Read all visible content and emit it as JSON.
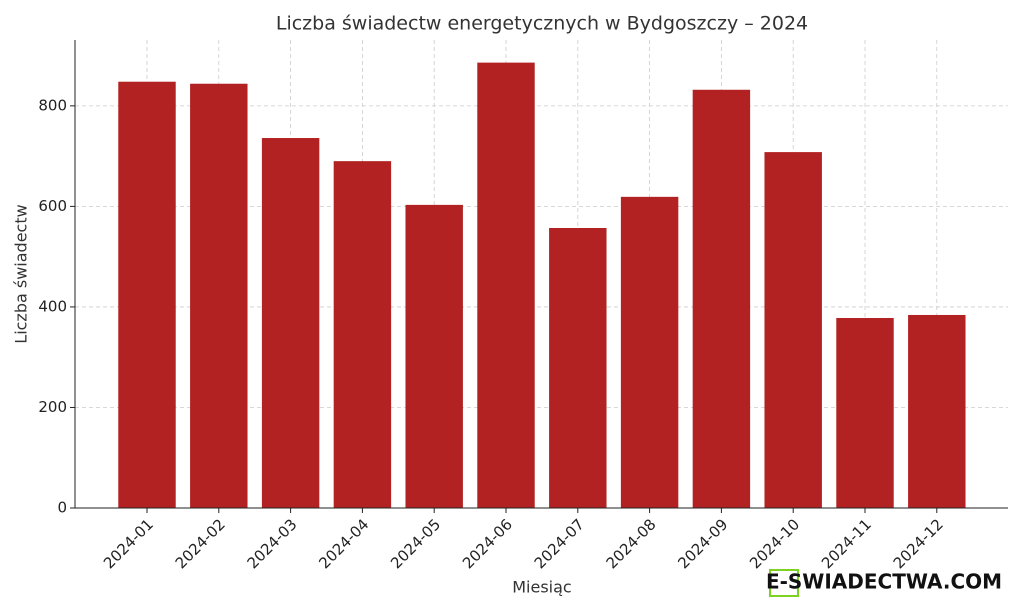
{
  "chart_data": {
    "type": "bar",
    "title": "Liczba świadectw energetycznych w Bydgoszczy – 2024",
    "x_label": "Miesiąc",
    "y_label": "Liczba świadectw",
    "categories": [
      "2024-01",
      "2024-02",
      "2024-03",
      "2024-04",
      "2024-05",
      "2024-06",
      "2024-07",
      "2024-08",
      "2024-09",
      "2024-10",
      "2024-11",
      "2024-12"
    ],
    "values": [
      848,
      844,
      736,
      690,
      603,
      886,
      557,
      619,
      832,
      708,
      378,
      384
    ],
    "color": "#b22222",
    "ylim": [
      0,
      931
    ],
    "yticks": [
      0,
      200,
      400,
      600,
      800
    ],
    "grid": true,
    "watermark": "E-SWIADECTWA.COM"
  }
}
